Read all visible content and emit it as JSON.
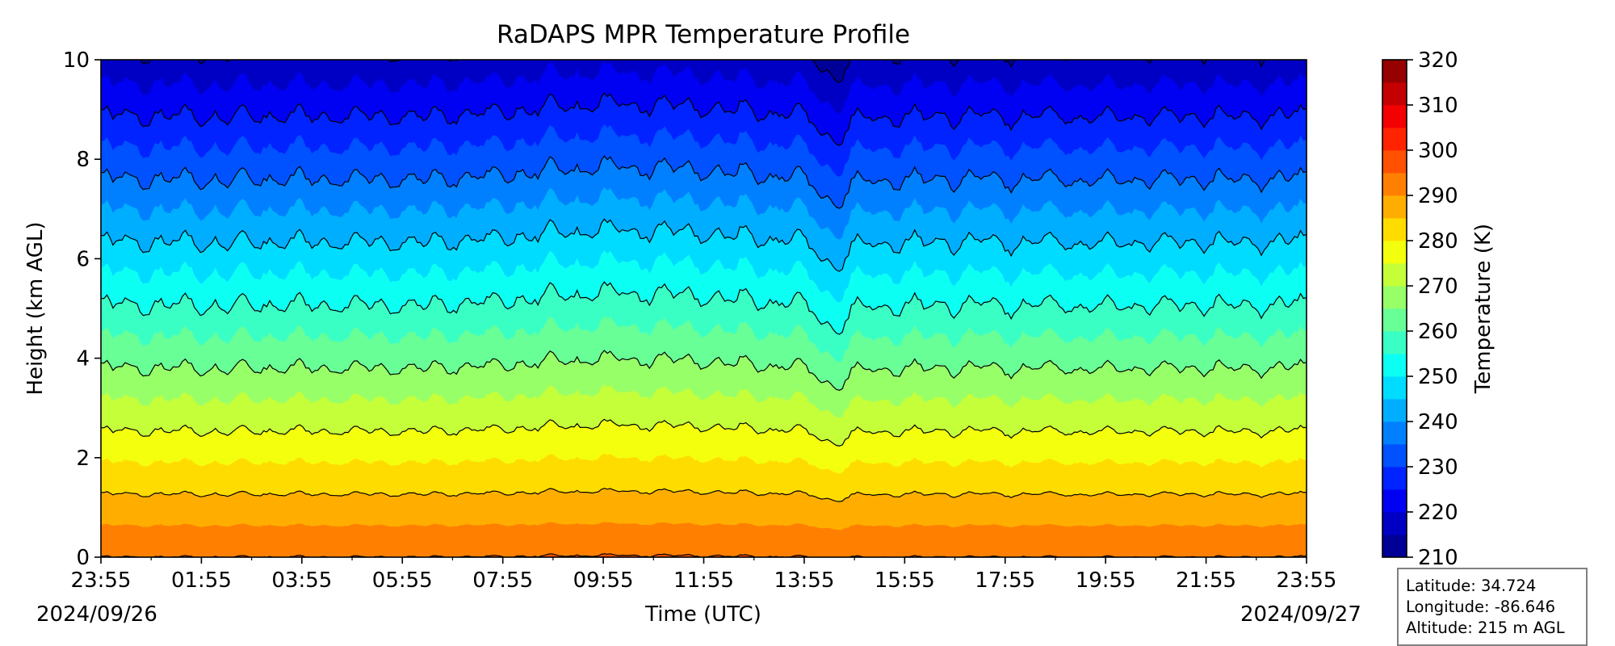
{
  "chart_data": {
    "type": "heatmap",
    "title": "RaDAPS MPR Temperature Profile",
    "xlabel": "Time (UTC)",
    "ylabel": "Height (km AGL)",
    "x_ticks": [
      "23:55",
      "01:55",
      "03:55",
      "05:55",
      "07:55",
      "09:55",
      "11:55",
      "13:55",
      "15:55",
      "17:55",
      "19:55",
      "21:55",
      "23:55"
    ],
    "x_range_hours": [
      0,
      24
    ],
    "start_date": "2024/09/26",
    "end_date": "2024/09/27",
    "ylim": [
      0,
      10
    ],
    "y_ticks": [
      0,
      2,
      4,
      6,
      8,
      10
    ],
    "colorbar": {
      "label": "Temperature (K)",
      "range": [
        210,
        320
      ],
      "ticks": [
        210,
        220,
        230,
        240,
        250,
        260,
        270,
        280,
        290,
        300,
        310,
        320
      ],
      "levels_step": 5,
      "colormap": "jet"
    },
    "contour_levels_K": [
      215,
      225,
      235,
      245,
      255,
      265,
      275,
      285,
      295
    ],
    "surface_temperature_K": 295,
    "lapse_rate_K_per_km": 7.9,
    "notable_disturbance_time_utc": "14:30"
  },
  "station": {
    "latitude": "Latitude: 34.724",
    "longitude": "Longitude: -86.646",
    "altitude": "Altitude: 215 m AGL"
  }
}
